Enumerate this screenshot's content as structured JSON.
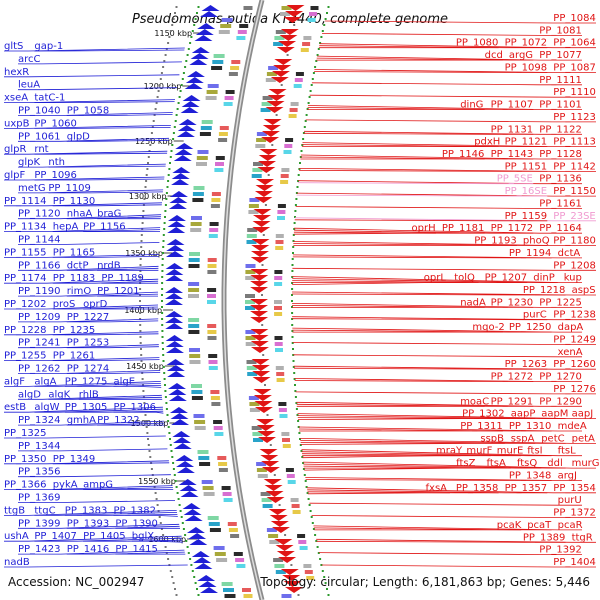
{
  "title": "Pseudomonas putida KT2440, complete genome",
  "accession": "Accession: NC_002947",
  "summary": "Topology: circular; Length: 6,181,863 bp; Genes: 5,446",
  "colors": {
    "minus": "#1f1fd6",
    "plus": "#e01515",
    "rna": "#f09ad0",
    "backbone": "#8c8c8c"
  },
  "kbp_ticks": [
    "1150 kbp",
    "1200 kbp",
    "1250 kbp",
    "1300 kbp",
    "1350 kbp",
    "1400 kbp",
    "1450 kbp",
    "1500 kbp",
    "1550 kbp",
    "1600 kbp"
  ],
  "left_labels": [
    [
      "gltS",
      "gap-1"
    ],
    [
      "arcC"
    ],
    [
      "hexR"
    ],
    [
      "leuA"
    ],
    [
      "xseA",
      "tatC-1"
    ],
    [
      "PP_1040",
      "PP_1058"
    ],
    [
      "uxpB",
      "PP_1060"
    ],
    [
      "PP_1061",
      "glpD"
    ],
    [
      "glpR",
      "rnt"
    ],
    [
      "glpK",
      "nth"
    ],
    [
      "glpF",
      "PP_1096"
    ],
    [
      "metG",
      "PP_1109"
    ],
    [
      "PP_1114",
      "PP_1130"
    ],
    [
      "PP_1120",
      "nhaA",
      "braG"
    ],
    [
      "PP_1134",
      "hepA",
      "PP_1156"
    ],
    [
      "PP_1144"
    ],
    [
      "PP_1155",
      "PP_1165"
    ],
    [
      "PP_1166",
      "dctP",
      "nrdB"
    ],
    [
      "PP_1174",
      "PP_1183",
      "PP_1189"
    ],
    [
      "PP_1190",
      "rimO",
      "PP_1201"
    ],
    [
      "PP_1202",
      "proS",
      "oprD"
    ],
    [
      "PP_1209",
      "PP_1227"
    ],
    [
      "PP_1228",
      "PP_1235"
    ],
    [
      "PP_1241",
      "PP_1253"
    ],
    [
      "PP_1255",
      "PP_1261"
    ],
    [
      "PP_1262",
      "PP_1274"
    ],
    [
      "algF",
      "algA",
      "PP_1275",
      "algE"
    ],
    [
      "algD",
      "algK",
      "rhlB"
    ],
    [
      "estB",
      "algW",
      "PP_1305",
      "PP_1306"
    ],
    [
      "PP_1324",
      "gmhA",
      "PP_1322"
    ],
    [
      "PP_1325"
    ],
    [
      "PP_1344"
    ],
    [
      "PP_1350",
      "PP_1349"
    ],
    [
      "PP_1356"
    ],
    [
      "PP_1366",
      "pykA",
      "ampG"
    ],
    [
      "PP_1369"
    ],
    [
      "ttgB",
      "ttgC",
      "PP_1383",
      "PP_1382"
    ],
    [
      "PP_1399",
      "PP_1393",
      "PP_1390"
    ],
    [
      "ushA",
      "PP_1407",
      "PP_1405",
      "bglX"
    ],
    [
      "PP_1423",
      "PP_1416",
      "PP_1415"
    ],
    [
      "nadB"
    ]
  ],
  "right_labels": [
    [
      "PP_1084"
    ],
    [
      "PP_1081"
    ],
    [
      "PP_1064",
      "PP_1072",
      "PP_1080"
    ],
    [
      "PP_1077",
      "argG",
      "dcd"
    ],
    [
      "PP_1087",
      "PP_1098"
    ],
    [
      "PP_1111"
    ],
    [
      "PP_1110"
    ],
    [
      "PP_1101",
      "PP_1107",
      "dinG"
    ],
    [
      "PP_1123"
    ],
    [
      "PP_1122",
      "PP_1131"
    ],
    [
      "PP_1113",
      "PP_1121",
      "pdxH"
    ],
    [
      "PP_1128",
      "PP_1143",
      "PP_1146"
    ],
    [
      "PP_1142",
      "PP_1151"
    ],
    [
      "PP_1136",
      "PP_5SE"
    ],
    [
      "PP_1150",
      "PP_16SE"
    ],
    [
      "PP_1161"
    ],
    [
      "PP_23SE",
      "PP_1159"
    ],
    [
      "PP_1164",
      "PP_1172",
      "PP_1181",
      "oprH"
    ],
    [
      "PP_1180",
      "phoQ",
      "PP_1193"
    ],
    [
      "dctA",
      "PP_1194"
    ],
    [
      "PP_1208"
    ],
    [
      "kup",
      "dinP",
      "PP_1207",
      "tolQ",
      "oprL"
    ],
    [
      "aspS",
      "PP_1218"
    ],
    [
      "PP_1225",
      "PP_1230",
      "nadA"
    ],
    [
      "PP_1238",
      "purC"
    ],
    [
      "dapA",
      "PP_1250",
      "mqo-2"
    ],
    [
      "PP_1249"
    ],
    [
      "xenA"
    ],
    [
      "PP_1260",
      "PP_1263"
    ],
    [
      "PP_1270",
      "PP_1272"
    ],
    [
      "PP_1276"
    ],
    [
      "PP_1290",
      "PP_1291",
      "moaC"
    ],
    [
      "aapJ",
      "aapM",
      "aapP",
      "PP_1302"
    ],
    [
      "mdeA",
      "PP_1310",
      "PP_1311"
    ],
    [
      "petA",
      "petC",
      "sspA",
      "sspB"
    ],
    [
      "ftsL",
      "ftsI",
      "murE",
      "murF",
      "mraY"
    ],
    [
      "murG",
      "ddl",
      "ftsQ",
      "ftsA",
      "ftsZ"
    ],
    [
      "argJ",
      "PP_1348"
    ],
    [
      "PP_1354",
      "PP_1357",
      "PP_1358",
      "fxsA"
    ],
    [
      "purU"
    ],
    [
      "PP_1372"
    ],
    [
      "pcaR",
      "pcaT",
      "pcaK"
    ],
    [
      "ttgR",
      "PP_1389"
    ],
    [
      "PP_1392"
    ],
    [
      "PP_1404"
    ]
  ]
}
